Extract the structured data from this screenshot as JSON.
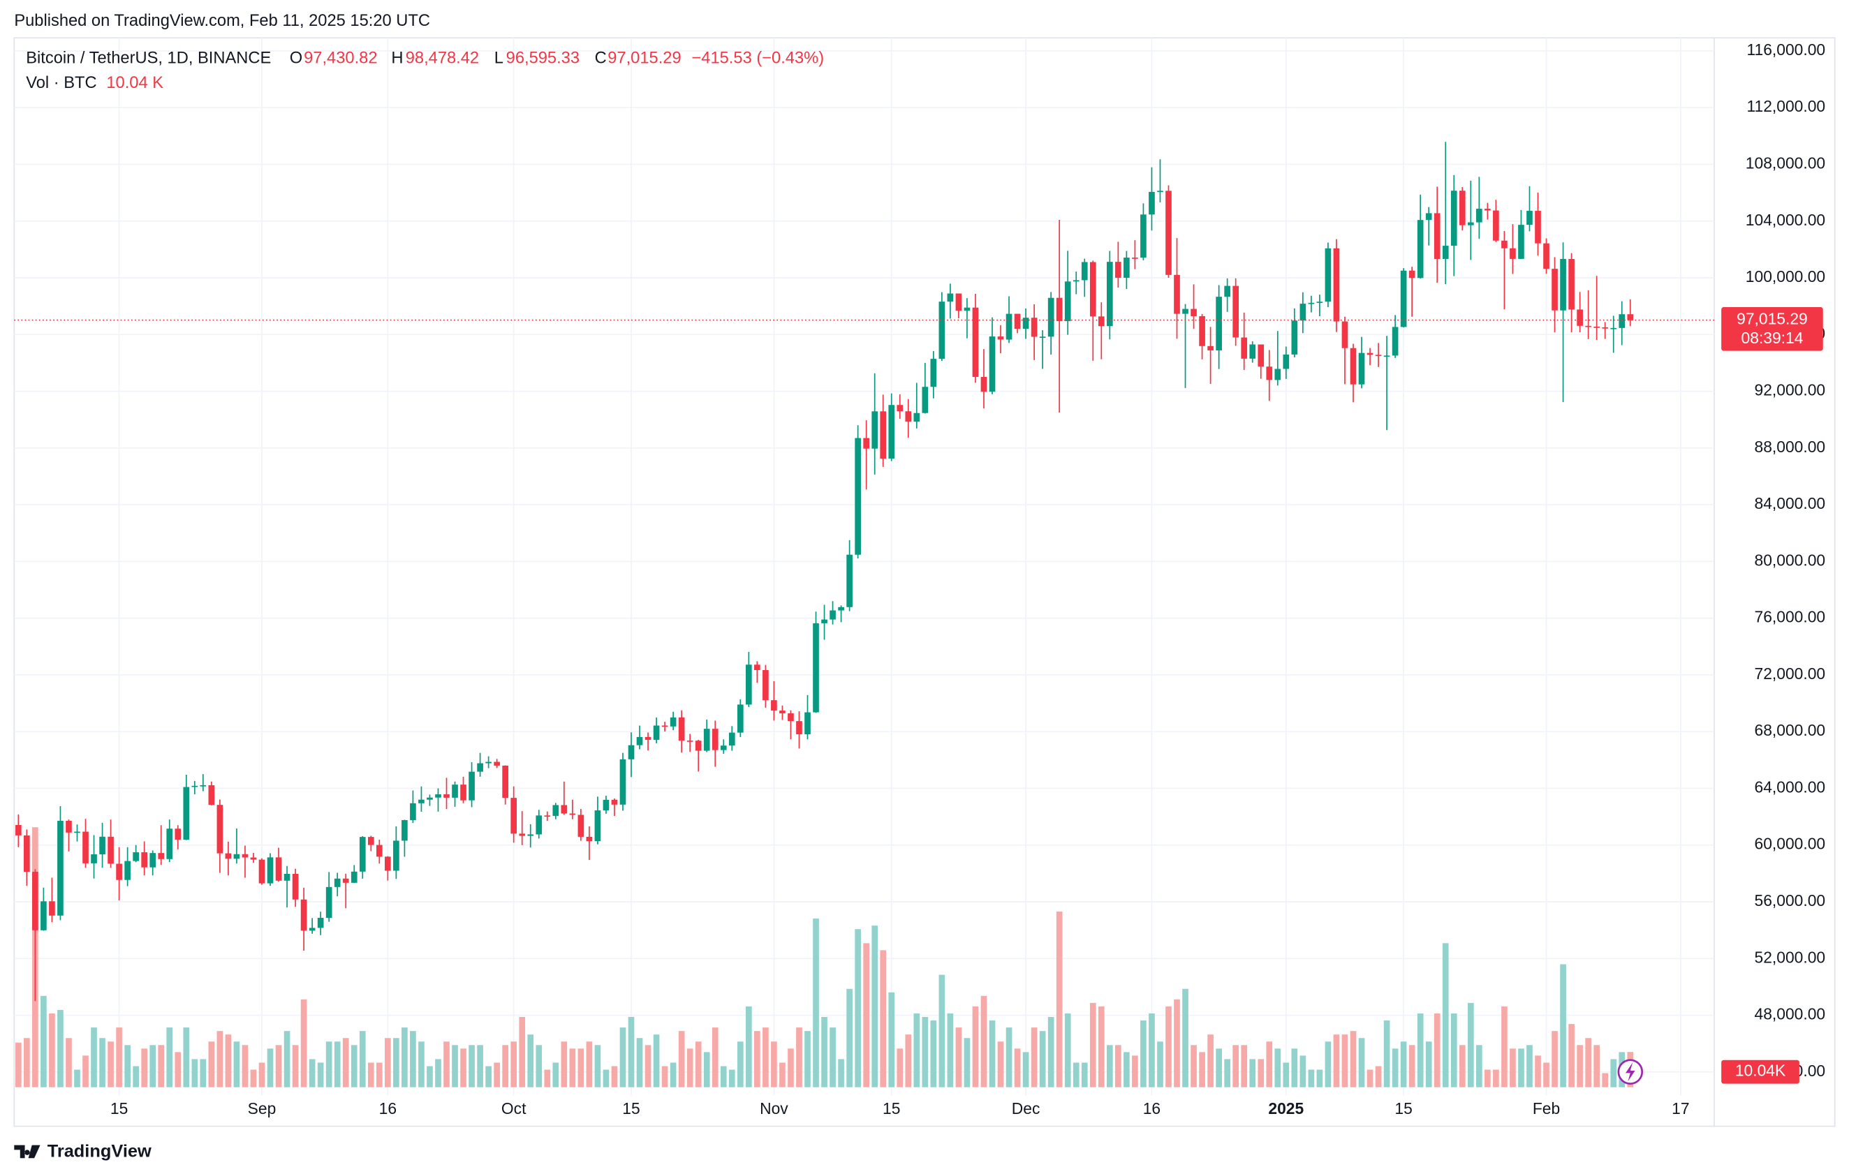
{
  "page": {
    "published": "Published on TradingView.com, Feb 11, 2025 15:20 UTC",
    "brand": "TradingView"
  },
  "chart_data": {
    "type": "candlestick",
    "legend": {
      "symbol": "Bitcoin / TetherUS, 1D, BINANCE",
      "fields": [
        {
          "key": "O",
          "value": "97,430.82"
        },
        {
          "key": "H",
          "value": "98,478.42"
        },
        {
          "key": "L",
          "value": "96,595.33"
        },
        {
          "key": "C",
          "value": "97,015.29"
        }
      ],
      "change": "−415.53 (−0.43%)",
      "volume_name": "Vol · BTC",
      "volume_value": "10.04 K"
    },
    "price_label": {
      "value": "97,015.29",
      "countdown": "08:39:14"
    },
    "volume_label": "10.04K",
    "up_color": "#089981",
    "down_color": "#f23645",
    "volume_up_color": "#92d2cc",
    "volume_down_color": "#f7a9a7",
    "grid": true,
    "xlim": [
      "2024-08-02T12:00:00Z",
      "2025-02-21T00:00:00Z"
    ],
    "ylim": [
      42340,
      116920
    ],
    "xticks": [
      {
        "value": "2024-08-15",
        "label": "15"
      },
      {
        "value": "2024-09-01",
        "label": "Sep"
      },
      {
        "value": "2024-09-16",
        "label": "16"
      },
      {
        "value": "2024-10-01",
        "label": "Oct"
      },
      {
        "value": "2024-10-15",
        "label": "15"
      },
      {
        "value": "2024-11-01",
        "label": "Nov"
      },
      {
        "value": "2024-11-15",
        "label": "15"
      },
      {
        "value": "2024-12-01",
        "label": "Dec"
      },
      {
        "value": "2024-12-16",
        "label": "16"
      },
      {
        "value": "2025-01-01",
        "label": "2025"
      },
      {
        "value": "2025-01-15",
        "label": "15"
      },
      {
        "value": "2025-02-01",
        "label": "Feb"
      },
      {
        "value": "2025-02-17",
        "label": "17"
      }
    ],
    "yticks": [
      {
        "value": 44000,
        "label": "44,000.00"
      },
      {
        "value": 48000,
        "label": "48,000.00"
      },
      {
        "value": 52000,
        "label": "52,000.00"
      },
      {
        "value": 56000,
        "label": "56,000.00"
      },
      {
        "value": 60000,
        "label": "60,000.00"
      },
      {
        "value": 64000,
        "label": "64,000.00"
      },
      {
        "value": 68000,
        "label": "68,000.00"
      },
      {
        "value": 72000,
        "label": "72,000.00"
      },
      {
        "value": 76000,
        "label": "76,000.00"
      },
      {
        "value": 80000,
        "label": "80,000.00"
      },
      {
        "value": 84000,
        "label": "84,000.00"
      },
      {
        "value": 88000,
        "label": "88,000.00"
      },
      {
        "value": 92000,
        "label": "92,000.00"
      },
      {
        "value": 96000,
        "label": "96,000.00"
      },
      {
        "value": 100000,
        "label": "100,000.00"
      },
      {
        "value": 104000,
        "label": "104,000.00"
      },
      {
        "value": 108000,
        "label": "108,000.00"
      },
      {
        "value": 112000,
        "label": "112,000.00"
      },
      {
        "value": 116000,
        "label": "116,000.00"
      }
    ],
    "x": [
      "2024-08-03",
      "2024-08-04",
      "2024-08-05",
      "2024-08-06",
      "2024-08-07",
      "2024-08-08",
      "2024-08-09",
      "2024-08-10",
      "2024-08-11",
      "2024-08-12",
      "2024-08-13",
      "2024-08-14",
      "2024-08-15",
      "2024-08-16",
      "2024-08-17",
      "2024-08-18",
      "2024-08-19",
      "2024-08-20",
      "2024-08-21",
      "2024-08-22",
      "2024-08-23",
      "2024-08-24",
      "2024-08-25",
      "2024-08-26",
      "2024-08-27",
      "2024-08-28",
      "2024-08-29",
      "2024-08-30",
      "2024-08-31",
      "2024-09-01",
      "2024-09-02",
      "2024-09-03",
      "2024-09-04",
      "2024-09-05",
      "2024-09-06",
      "2024-09-07",
      "2024-09-08",
      "2024-09-09",
      "2024-09-10",
      "2024-09-11",
      "2024-09-12",
      "2024-09-13",
      "2024-09-14",
      "2024-09-15",
      "2024-09-16",
      "2024-09-17",
      "2024-09-18",
      "2024-09-19",
      "2024-09-20",
      "2024-09-21",
      "2024-09-22",
      "2024-09-23",
      "2024-09-24",
      "2024-09-25",
      "2024-09-26",
      "2024-09-27",
      "2024-09-28",
      "2024-09-29",
      "2024-09-30",
      "2024-10-01",
      "2024-10-02",
      "2024-10-03",
      "2024-10-04",
      "2024-10-05",
      "2024-10-06",
      "2024-10-07",
      "2024-10-08",
      "2024-10-09",
      "2024-10-10",
      "2024-10-11",
      "2024-10-12",
      "2024-10-13",
      "2024-10-14",
      "2024-10-15",
      "2024-10-16",
      "2024-10-17",
      "2024-10-18",
      "2024-10-19",
      "2024-10-20",
      "2024-10-21",
      "2024-10-22",
      "2024-10-23",
      "2024-10-24",
      "2024-10-25",
      "2024-10-26",
      "2024-10-27",
      "2024-10-28",
      "2024-10-29",
      "2024-10-30",
      "2024-10-31",
      "2024-11-01",
      "2024-11-02",
      "2024-11-03",
      "2024-11-04",
      "2024-11-05",
      "2024-11-06",
      "2024-11-07",
      "2024-11-08",
      "2024-11-09",
      "2024-11-10",
      "2024-11-11",
      "2024-11-12",
      "2024-11-13",
      "2024-11-14",
      "2024-11-15",
      "2024-11-16",
      "2024-11-17",
      "2024-11-18",
      "2024-11-19",
      "2024-11-20",
      "2024-11-21",
      "2024-11-22",
      "2024-11-23",
      "2024-11-24",
      "2024-11-25",
      "2024-11-26",
      "2024-11-27",
      "2024-11-28",
      "2024-11-29",
      "2024-11-30",
      "2024-12-01",
      "2024-12-02",
      "2024-12-03",
      "2024-12-04",
      "2024-12-05",
      "2024-12-06",
      "2024-12-07",
      "2024-12-08",
      "2024-12-09",
      "2024-12-10",
      "2024-12-11",
      "2024-12-12",
      "2024-12-13",
      "2024-12-14",
      "2024-12-15",
      "2024-12-16",
      "2024-12-17",
      "2024-12-18",
      "2024-12-19",
      "2024-12-20",
      "2024-12-21",
      "2024-12-22",
      "2024-12-23",
      "2024-12-24",
      "2024-12-25",
      "2024-12-26",
      "2024-12-27",
      "2024-12-28",
      "2024-12-29",
      "2024-12-30",
      "2024-12-31",
      "2025-01-01",
      "2025-01-02",
      "2025-01-03",
      "2025-01-04",
      "2025-01-05",
      "2025-01-06",
      "2025-01-07",
      "2025-01-08",
      "2025-01-09",
      "2025-01-10",
      "2025-01-11",
      "2025-01-12",
      "2025-01-13",
      "2025-01-14",
      "2025-01-15",
      "2025-01-16",
      "2025-01-17",
      "2025-01-18",
      "2025-01-19",
      "2025-01-20",
      "2025-01-21",
      "2025-01-22",
      "2025-01-23",
      "2025-01-24",
      "2025-01-25",
      "2025-01-26",
      "2025-01-27",
      "2025-01-28",
      "2025-01-29",
      "2025-01-30",
      "2025-01-31",
      "2025-02-01",
      "2025-02-02",
      "2025-02-03",
      "2025-02-04",
      "2025-02-05",
      "2025-02-06",
      "2025-02-07",
      "2025-02-08",
      "2025-02-09",
      "2025-02-10",
      "2025-02-11"
    ],
    "open": [
      61415,
      60680,
      58116,
      53991,
      56034,
      55027,
      61710,
      60881,
      60945,
      58712,
      59346,
      60587,
      58683,
      57541,
      58874,
      59491,
      58427,
      59438,
      59013,
      61157,
      60381,
      64094,
      64178,
      64220,
      62834,
      59415,
      59034,
      59359,
      59123,
      58973,
      57301,
      59132,
      57487,
      57970,
      56160,
      53962,
      54160,
      54869,
      57042,
      57635,
      57338,
      58127,
      60571,
      60005,
      59182,
      58192,
      60309,
      61759,
      62947,
      63201,
      63348,
      63578,
      63339,
      64262,
      63152,
      65173,
      65769,
      65867,
      65602,
      63327,
      60805,
      60649,
      60752,
      62086,
      62058,
      62819,
      62224,
      62131,
      60582,
      60274,
      62445,
      63193,
      62851,
      66046,
      67042,
      67620,
      67421,
      68428,
      68362,
      69001,
      67367,
      67362,
      66653,
      68198,
      66698,
      67015,
      67929,
      69907,
      72720,
      72339,
      70215,
      69482,
      69289,
      68741,
      67811,
      69359,
      75640,
      75904,
      76545,
      76778,
      80474,
      88701,
      87955,
      90584,
      87250,
      91032,
      90587,
      89855,
      90465,
      92310,
      94287,
      98318,
      98892,
      97673,
      97900,
      93010,
      91965,
      95863,
      95643,
      97461,
      96407,
      97185,
      95840,
      95849,
      98587,
      96945,
      99740,
      99831,
      101109,
      97276,
      96593,
      101125,
      100001,
      101424,
      101420,
      104463,
      106058,
      106133,
      100204,
      97461,
      97805,
      97291,
      95186,
      94881,
      98663,
      99429,
      95791,
      94299,
      95300,
      93738,
      92792,
      93576,
      94591,
      96984,
      98174,
      98236,
      98314,
      102078,
      96922,
      95043,
      92484,
      94701,
      94566,
      94488,
      94516,
      96534,
      100505,
      99987,
      104077,
      104556,
      101331,
      102260,
      106143,
      103706,
      103910,
      104870,
      104746,
      102620,
      102082,
      101335,
      103734,
      104722,
      102429,
      100635,
      97700,
      101328,
      97763,
      96613,
      96554,
      96506,
      96444,
      96462,
      97430.82
    ],
    "high": [
      62160,
      61100,
      58300,
      57000,
      57700,
      62745,
      61800,
      61450,
      61850,
      60700,
      61570,
      61800,
      59850,
      59850,
      60000,
      60260,
      59620,
      61400,
      61800,
      61400,
      64955,
      64520,
      65000,
      64480,
      63210,
      60234,
      61166,
      59960,
      59450,
      59066,
      59425,
      59809,
      58520,
      58327,
      56995,
      54850,
      55300,
      58100,
      58044,
      57980,
      58588,
      60625,
      60656,
      60382,
      59211,
      61320,
      61786,
      63850,
      64133,
      63559,
      64000,
      64745,
      64480,
      64817,
      65839,
      66498,
      66260,
      66076,
      65618,
      64130,
      62390,
      61470,
      62484,
      62370,
      62975,
      64478,
      63200,
      62543,
      61320,
      63417,
      63480,
      63285,
      66500,
      67950,
      68424,
      67939,
      69000,
      68693,
      69400,
      69500,
      67836,
      67420,
      68850,
      68771,
      67454,
      68388,
      70270,
      73620,
      72961,
      72700,
      71560,
      69840,
      69500,
      69432,
      70577,
      76460,
      76943,
      77199,
      76900,
      81500,
      89604,
      89956,
      93265,
      91765,
      91850,
      91779,
      91449,
      92594,
      94002,
      94831,
      98988,
      99588,
      98767,
      98564,
      98871,
      94973,
      97208,
      96650,
      98693,
      97463,
      97836,
      98130,
      96305,
      99000,
      104088,
      101898,
      100439,
      101350,
      101215,
      98270,
      101895,
      102540,
      101895,
      102650,
      105250,
      107793,
      108353,
      106524,
      102800,
      98150,
      99540,
      97448,
      96538,
      99487,
      99960,
      99963,
      97544,
      95525,
      95174,
      94903,
      96250,
      95149,
      97839,
      98976,
      98734,
      98813,
      102482,
      102724,
      97258,
      95349,
      95837,
      95050,
      95400,
      95900,
      97371,
      100681,
      100782,
      105865,
      104988,
      106422,
      109588,
      107240,
      106394,
      106850,
      107120,
      105286,
      105500,
      103300,
      103784,
      104782,
      106457,
      106012,
      102783,
      101456,
      102500,
      101740,
      99000,
      99120,
      100137,
      96880,
      97323,
      98345,
      98478.42
    ],
    "low": [
      59850,
      57122,
      49000,
      53960,
      54560,
      54700,
      59550,
      60250,
      58400,
      57640,
      58400,
      58400,
      56100,
      57100,
      58790,
      57860,
      57860,
      58600,
      58800,
      59700,
      60350,
      63580,
      63800,
      62800,
      58040,
      57860,
      58700,
      57700,
      58750,
      57200,
      57128,
      57415,
      55600,
      55643,
      52550,
      53745,
      53650,
      54590,
      56386,
      55545,
      57324,
      57632,
      59567,
      58696,
      57493,
      57610,
      59174,
      61555,
      62350,
      62758,
      62357,
      62538,
      62700,
      62947,
      62670,
      64819,
      65422,
      65430,
      62856,
      60164,
      59996,
      59828,
      60460,
      61700,
      61820,
      62128,
      61823,
      60300,
      58946,
      60050,
      62208,
      62050,
      62422,
      64800,
      66750,
      66666,
      67177,
      68010,
      68100,
      66518,
      66571,
      65188,
      66559,
      65522,
      66439,
      66650,
      67618,
      69730,
      71436,
      69685,
      68779,
      68820,
      67455,
      66803,
      67458,
      69322,
      74480,
      75555,
      75714,
      76492,
      80216,
      85072,
      86127,
      86668,
      87073,
      90056,
      88722,
      89376,
      90426,
      91500,
      94139,
      97122,
      97145,
      95734,
      92600,
      90791,
      91792,
      94677,
      95407,
      96092,
      95694,
      94200,
      93578,
      94587,
      90500,
      95981,
      98844,
      98657,
      94150,
      94256,
      95658,
      99311,
      99205,
      100609,
      101234,
      103333,
      105321,
      100000,
      95700,
      92232,
      96398,
      94250,
      92520,
      93569,
      97600,
      95200,
      93500,
      94015,
      92881,
      91317,
      92400,
      92870,
      94392,
      96100,
      97562,
      97291,
      97926,
      96181,
      92500,
      91220,
      92206,
      93831,
      93711,
      89256,
      94346,
      96500,
      97254,
      99950,
      102277,
      99651,
      99550,
      100119,
      103339,
      101262,
      102750,
      104106,
      102520,
      97777,
      100273,
      101328,
      103278,
      101560,
      100279,
      96150,
      91231,
      96150,
      96155,
      95676,
      95620,
      95688,
      94713,
      95256,
      96595.33
    ],
    "close": [
      60680,
      58116,
      53991,
      56034,
      55027,
      61710,
      60881,
      60945,
      58712,
      59346,
      60587,
      58683,
      57541,
      58874,
      59491,
      58427,
      59438,
      59013,
      61157,
      60381,
      64094,
      64178,
      64220,
      62834,
      59415,
      59034,
      59359,
      59123,
      58973,
      57301,
      59132,
      57487,
      57970,
      56160,
      53962,
      54160,
      54869,
      57042,
      57635,
      57338,
      58127,
      60571,
      60005,
      59182,
      58192,
      60309,
      61759,
      62947,
      63201,
      63348,
      63578,
      63339,
      64262,
      63152,
      65173,
      65769,
      65867,
      65602,
      63327,
      60805,
      60649,
      60752,
      62086,
      62058,
      62819,
      62224,
      62131,
      60582,
      60274,
      62445,
      63193,
      62851,
      66046,
      67042,
      67620,
      67421,
      68428,
      68362,
      69001,
      67367,
      67362,
      66653,
      68198,
      66698,
      67015,
      67929,
      69907,
      72720,
      72339,
      70215,
      69482,
      69289,
      68741,
      67811,
      69359,
      75640,
      75904,
      76545,
      76778,
      80474,
      88701,
      87955,
      90584,
      87250,
      91032,
      90587,
      89855,
      90465,
      92310,
      94287,
      98318,
      98892,
      97673,
      97900,
      93010,
      91965,
      95863,
      95643,
      97461,
      96407,
      97185,
      95840,
      95849,
      98587,
      96945,
      99740,
      99831,
      101109,
      97276,
      96593,
      101125,
      100001,
      101424,
      101420,
      104463,
      106058,
      106133,
      100204,
      97461,
      97805,
      97291,
      95186,
      94881,
      98663,
      99429,
      95791,
      94299,
      95300,
      93738,
      92792,
      93576,
      94591,
      96984,
      98174,
      98236,
      98314,
      102078,
      96922,
      95043,
      92484,
      94701,
      94566,
      94488,
      94516,
      96534,
      100505,
      99987,
      104077,
      104556,
      101331,
      102260,
      106143,
      103706,
      103910,
      104870,
      104746,
      102620,
      102082,
      101335,
      103734,
      104722,
      102429,
      100635,
      97700,
      101328,
      97763,
      96613,
      96554,
      96506,
      96444,
      96462,
      97430.82,
      97015.29
    ],
    "volume": [
      12700,
      14000,
      74000,
      26000,
      21000,
      22000,
      14000,
      5000,
      9000,
      17000,
      14000,
      13000,
      17000,
      12000,
      6000,
      11000,
      12000,
      12000,
      17000,
      10000,
      17000,
      8000,
      8000,
      13000,
      16000,
      15000,
      13000,
      12000,
      5000,
      7000,
      11000,
      12000,
      16000,
      12000,
      25000,
      8000,
      7000,
      13000,
      13000,
      14000,
      12000,
      16000,
      7000,
      7000,
      14000,
      14000,
      17000,
      16000,
      13000,
      6000,
      8000,
      13000,
      12000,
      11000,
      12000,
      12000,
      6000,
      7000,
      12000,
      13000,
      20000,
      15000,
      12000,
      5000,
      7000,
      13000,
      11000,
      11000,
      13000,
      12000,
      5000,
      6000,
      17000,
      20000,
      14000,
      12000,
      15000,
      6000,
      7000,
      16000,
      11000,
      13000,
      10000,
      17000,
      6000,
      5000,
      13000,
      23000,
      16000,
      17000,
      13000,
      7000,
      11000,
      17000,
      16000,
      48000,
      20000,
      17000,
      8000,
      28000,
      45000,
      41000,
      46000,
      39000,
      27000,
      11000,
      15000,
      21000,
      20000,
      19000,
      32000,
      21000,
      17000,
      14000,
      23000,
      26000,
      19000,
      13000,
      17000,
      11000,
      10000,
      17000,
      16000,
      20000,
      50000,
      21000,
      7000,
      7000,
      24000,
      23000,
      12000,
      12000,
      10000,
      9000,
      19000,
      21000,
      13000,
      23000,
      25000,
      28000,
      12000,
      10000,
      15000,
      11000,
      8000,
      12000,
      12000,
      8000,
      8000,
      13000,
      11000,
      7000,
      11000,
      9000,
      5000,
      5000,
      13000,
      15000,
      15000,
      16000,
      14000,
      5000,
      6000,
      19000,
      11000,
      13000,
      12000,
      21000,
      13000,
      21000,
      41000,
      21000,
      12000,
      24000,
      12000,
      5000,
      5000,
      23000,
      11000,
      11000,
      12000,
      9000,
      7000,
      16000,
      35000,
      18000,
      12000,
      14000,
      12000,
      4000,
      8000,
      10000,
      10040
    ]
  }
}
